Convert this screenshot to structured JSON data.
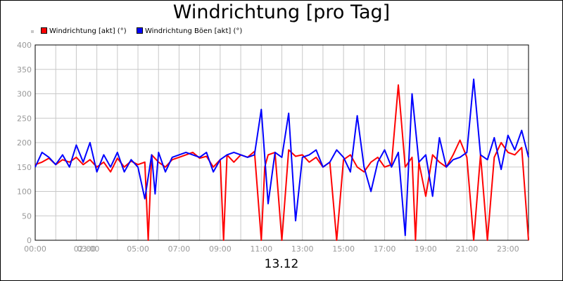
{
  "chart_data": {
    "type": "line",
    "title": "Windrichtung [pro Tag]",
    "xlabel": "13.12",
    "ylabel": "",
    "ylim": [
      0,
      400
    ],
    "xlim": [
      0,
      1440
    ],
    "yticks": [
      "0",
      "50",
      "100",
      "150",
      "200",
      "250",
      "300",
      "350",
      "400"
    ],
    "xticks": [
      {
        "minute": 0,
        "label": "00:00"
      },
      {
        "minute": 120,
        "label": "02:00"
      },
      {
        "minute": 180,
        "label": "03:00"
      },
      {
        "minute": 300,
        "label": "05:00"
      },
      {
        "minute": 420,
        "label": "07:00"
      },
      {
        "minute": 540,
        "label": "09:00"
      },
      {
        "minute": 660,
        "label": "11:00"
      },
      {
        "minute": 780,
        "label": "13:00"
      },
      {
        "minute": 900,
        "label": "15:00"
      },
      {
        "minute": 1020,
        "label": "17:00"
      },
      {
        "minute": 1140,
        "label": "19:00"
      },
      {
        "minute": 1260,
        "label": "21:00"
      },
      {
        "minute": 1380,
        "label": "23:00"
      }
    ],
    "legend_position": "top-left",
    "grid": true,
    "series": [
      {
        "name": "Windrichtung [akt] (°)",
        "color": "#ff0000",
        "x": [
          0,
          20,
          40,
          60,
          80,
          100,
          120,
          140,
          160,
          180,
          200,
          220,
          240,
          260,
          280,
          300,
          320,
          330,
          340,
          360,
          380,
          400,
          420,
          440,
          460,
          480,
          500,
          520,
          540,
          550,
          560,
          580,
          600,
          620,
          640,
          660,
          670,
          680,
          700,
          720,
          740,
          760,
          780,
          800,
          820,
          840,
          860,
          880,
          900,
          920,
          940,
          960,
          980,
          1000,
          1020,
          1040,
          1060,
          1080,
          1100,
          1110,
          1120,
          1140,
          1160,
          1180,
          1200,
          1220,
          1240,
          1260,
          1280,
          1300,
          1320,
          1340,
          1360,
          1380,
          1400,
          1420,
          1440
        ],
        "y": [
          155,
          160,
          168,
          155,
          165,
          160,
          170,
          155,
          165,
          150,
          160,
          140,
          168,
          150,
          162,
          155,
          160,
          0,
          175,
          160,
          150,
          165,
          170,
          175,
          180,
          168,
          172,
          150,
          165,
          0,
          175,
          160,
          175,
          170,
          182,
          0,
          150,
          175,
          180,
          0,
          185,
          172,
          175,
          160,
          170,
          150,
          160,
          0,
          165,
          175,
          150,
          140,
          160,
          170,
          150,
          155,
          318,
          150,
          170,
          0,
          160,
          90,
          175,
          160,
          150,
          175,
          205,
          170,
          0,
          175,
          0,
          170,
          200,
          180,
          175,
          190,
          0
        ]
      },
      {
        "name": "Windrichtung Böen [akt] (°)",
        "color": "#0000ff",
        "x": [
          0,
          20,
          40,
          60,
          80,
          100,
          120,
          140,
          160,
          180,
          200,
          220,
          240,
          260,
          280,
          300,
          320,
          340,
          350,
          360,
          380,
          400,
          420,
          440,
          460,
          480,
          500,
          520,
          540,
          560,
          580,
          600,
          620,
          640,
          660,
          680,
          700,
          720,
          740,
          760,
          780,
          800,
          820,
          840,
          860,
          880,
          900,
          920,
          940,
          960,
          980,
          1000,
          1020,
          1040,
          1060,
          1080,
          1100,
          1120,
          1140,
          1160,
          1180,
          1200,
          1220,
          1240,
          1260,
          1280,
          1300,
          1320,
          1340,
          1360,
          1380,
          1400,
          1420,
          1440
        ],
        "y": [
          150,
          180,
          170,
          155,
          175,
          150,
          195,
          160,
          200,
          140,
          175,
          150,
          180,
          140,
          165,
          150,
          85,
          175,
          95,
          180,
          140,
          170,
          175,
          180,
          175,
          170,
          180,
          140,
          165,
          175,
          180,
          175,
          170,
          175,
          268,
          75,
          180,
          170,
          260,
          40,
          170,
          175,
          185,
          150,
          160,
          185,
          170,
          140,
          255,
          150,
          100,
          160,
          185,
          150,
          180,
          10,
          300,
          160,
          175,
          90,
          210,
          150,
          165,
          170,
          180,
          330,
          175,
          165,
          210,
          145,
          215,
          185,
          225,
          170
        ]
      }
    ]
  }
}
